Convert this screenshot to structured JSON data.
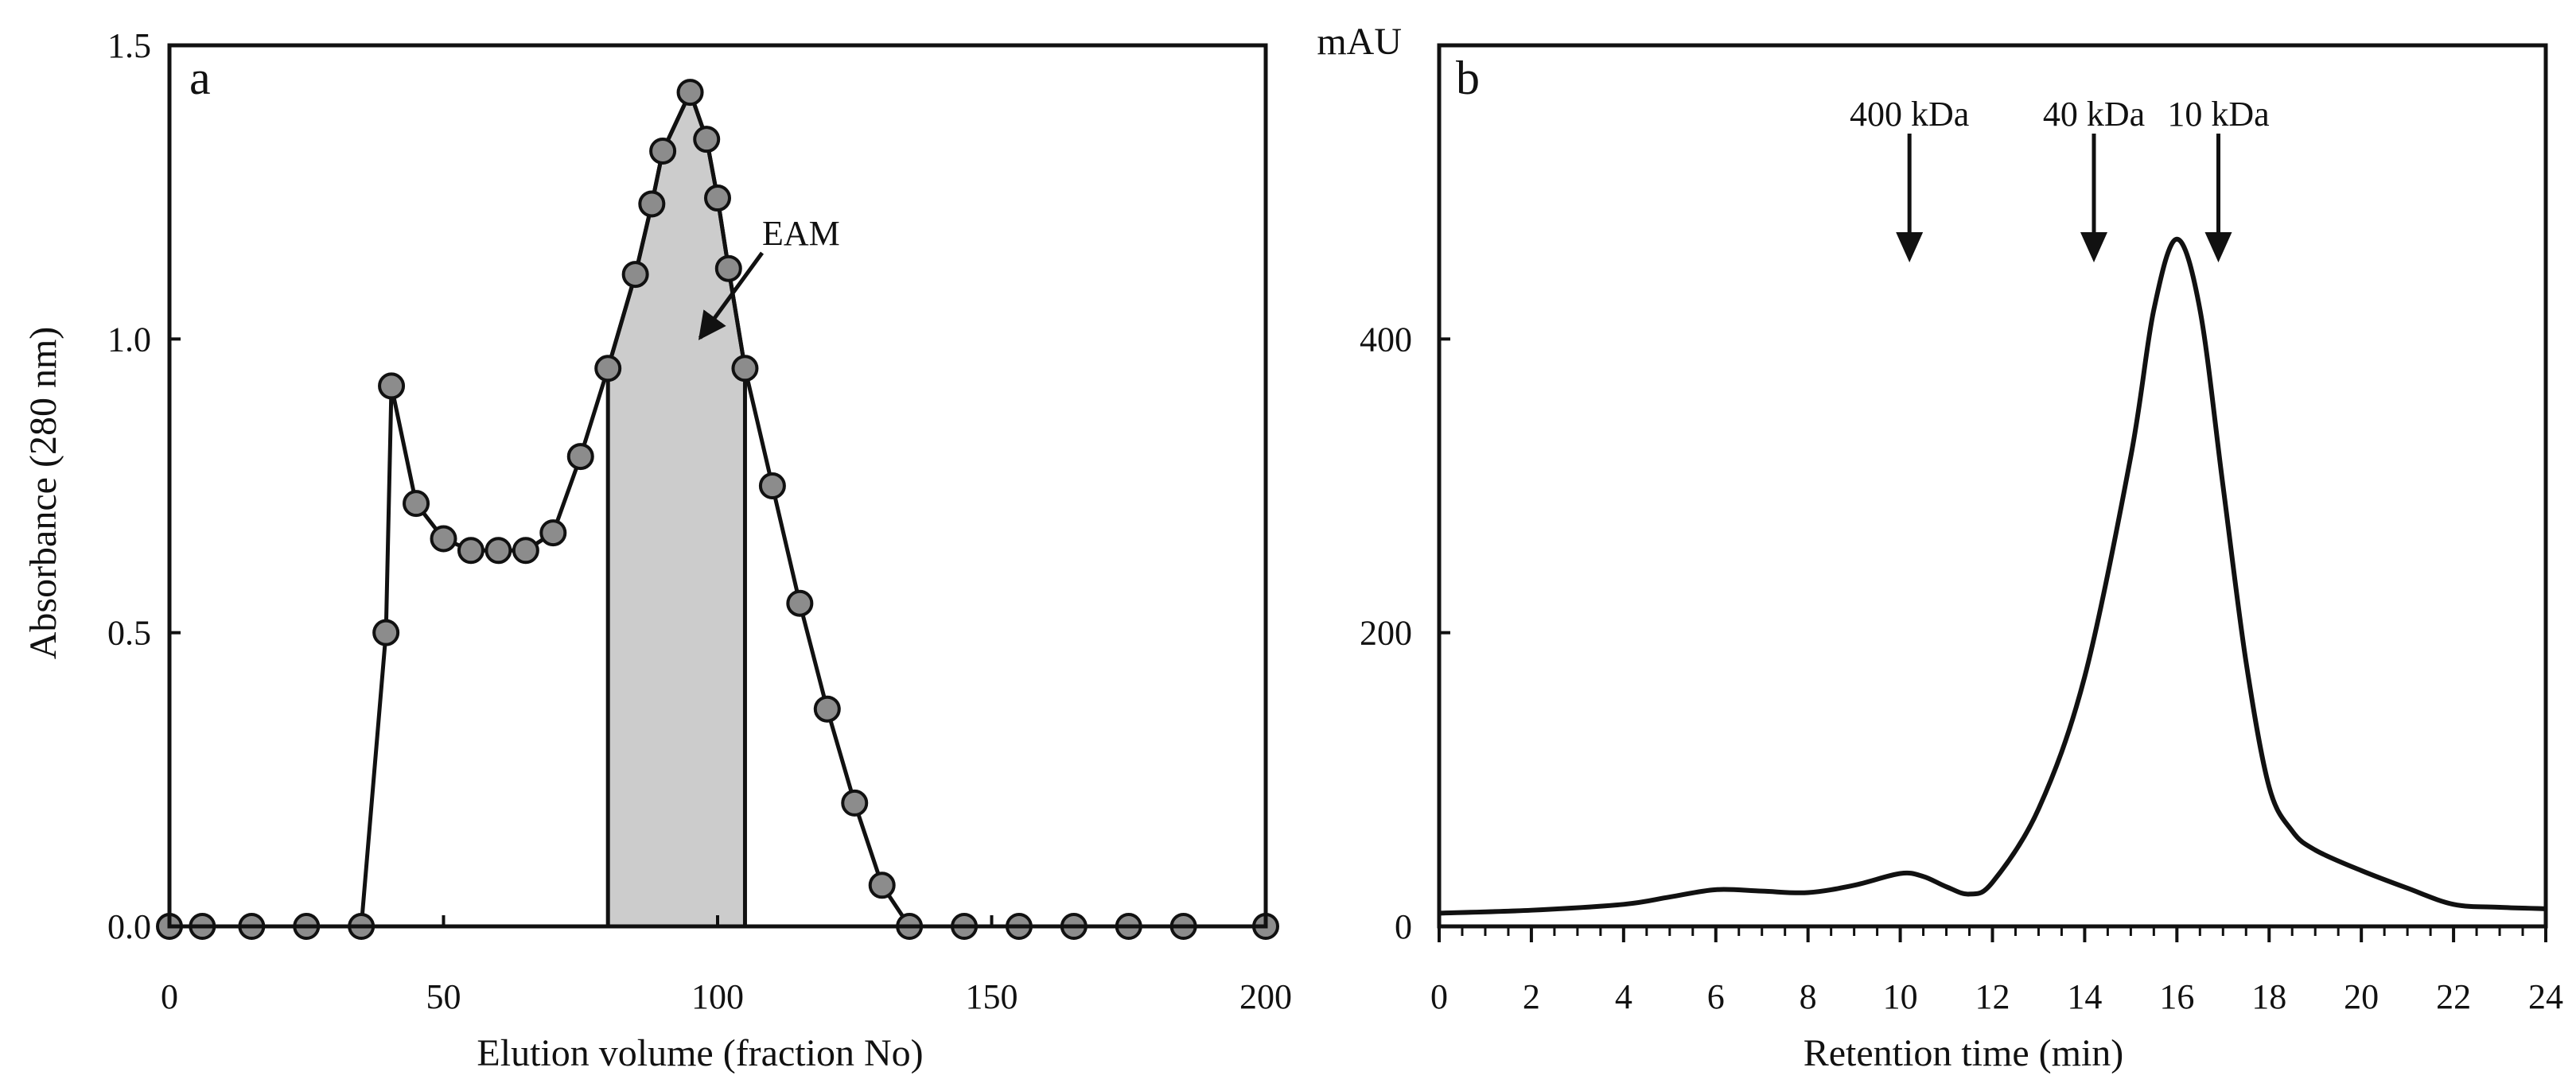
{
  "colors": {
    "ink": "#111111",
    "marker_fill": "#8c8c8c",
    "shade": "#cccccc",
    "background": "#ffffff"
  },
  "chart_data": [
    {
      "type": "line",
      "panel": "a",
      "xlabel": "Elution volume (fraction No)",
      "ylabel": "Absorbance (280 nm)",
      "xlim": [
        0,
        200
      ],
      "ylim": [
        0,
        1.5
      ],
      "x_ticks": [
        0,
        50,
        100,
        150,
        200
      ],
      "x_tick_labels": [
        "0",
        "50",
        "100",
        "150",
        "200"
      ],
      "y_ticks": [
        0,
        0.5,
        1.0,
        1.5
      ],
      "y_tick_labels": [
        "0.0",
        "0.5",
        "1.0",
        "1.5"
      ],
      "series": [
        {
          "name": "Absorbance",
          "marker": "circle",
          "x": [
            0,
            6,
            15,
            25,
            35,
            39.5,
            40.5,
            45,
            50,
            55,
            60,
            65,
            70,
            75,
            80,
            85,
            88,
            90,
            95,
            98,
            100,
            102,
            105,
            110,
            115,
            120,
            125,
            130,
            135,
            145,
            155,
            165,
            175,
            185,
            200
          ],
          "y": [
            0,
            0,
            0,
            0,
            0,
            0.5,
            0.92,
            0.72,
            0.66,
            0.64,
            0.64,
            0.64,
            0.67,
            0.8,
            0.95,
            1.11,
            1.23,
            1.32,
            1.42,
            1.34,
            1.24,
            1.12,
            0.95,
            0.75,
            0.55,
            0.37,
            0.21,
            0.07,
            0,
            0,
            0,
            0,
            0,
            0,
            0
          ]
        }
      ],
      "shaded_region": {
        "label": "EAM",
        "x_start": 80,
        "x_end": 105
      },
      "annotation": {
        "text": "EAM",
        "arrow_to": [
          97,
          1.0
        ]
      }
    },
    {
      "type": "line",
      "panel": "b",
      "xlabel": "Retention time (min)",
      "ylabel": "mAU",
      "xlim": [
        0,
        24
      ],
      "ylim": [
        0,
        600
      ],
      "x_ticks": [
        0,
        2,
        4,
        6,
        8,
        10,
        12,
        14,
        16,
        18,
        20,
        22,
        24
      ],
      "x_tick_labels": [
        "0",
        "2",
        "4",
        "6",
        "8",
        "10",
        "12",
        "14",
        "16",
        "18",
        "20",
        "22",
        "24"
      ],
      "y_ticks": [
        0,
        200,
        400
      ],
      "y_tick_labels": [
        "0",
        "200",
        "400"
      ],
      "series": [
        {
          "name": "Chromatogram",
          "x": [
            0,
            2,
            4,
            5,
            6,
            7,
            8,
            9,
            10,
            10.5,
            11,
            11.5,
            12,
            13,
            14,
            15,
            15.5,
            16,
            16.5,
            17,
            17.5,
            18,
            18.5,
            19,
            20,
            21,
            22,
            23,
            24
          ],
          "y": [
            9,
            11,
            15,
            20,
            25,
            24,
            23,
            28,
            36,
            34,
            27,
            22,
            30,
            80,
            170,
            320,
            420,
            468,
            420,
            300,
            180,
            95,
            65,
            52,
            38,
            26,
            15,
            13,
            12
          ]
        }
      ],
      "markers": [
        {
          "label": "400 kDa",
          "x": 10.2
        },
        {
          "label": "40 kDa",
          "x": 14.2
        },
        {
          "label": "10 kDa",
          "x": 16.9
        }
      ]
    }
  ]
}
